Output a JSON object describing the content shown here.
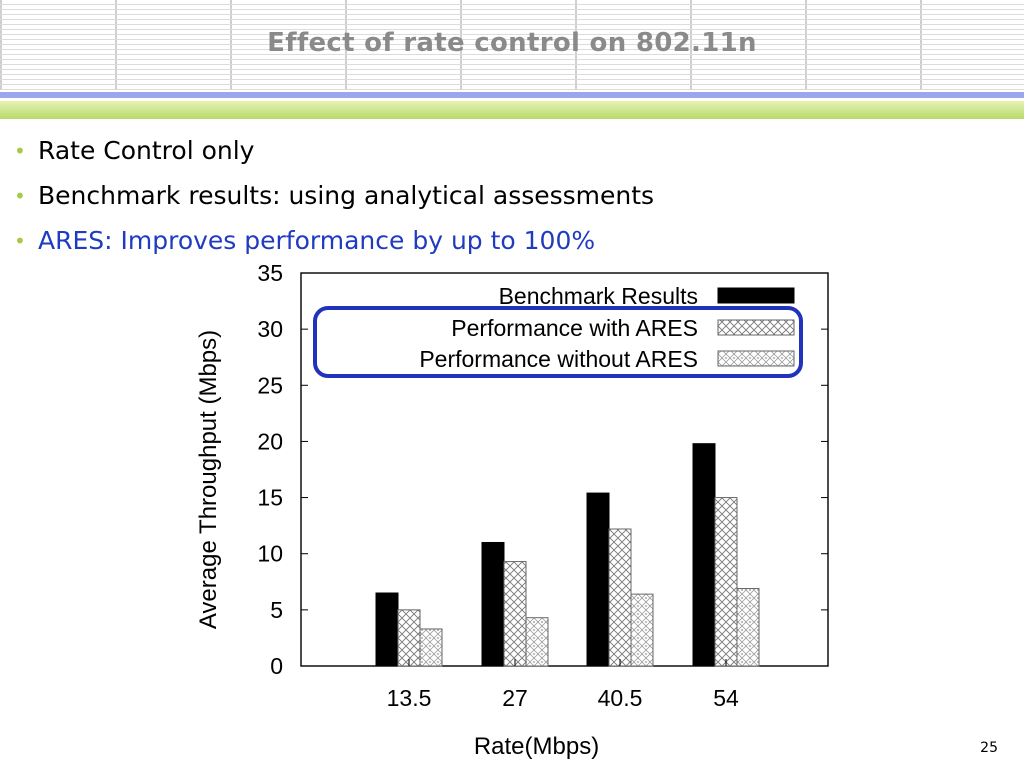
{
  "slide": {
    "title": "Effect of rate control on 802.11n",
    "page_number": "25"
  },
  "bullets": [
    {
      "text": "Rate Control only",
      "color": "#000000"
    },
    {
      "text": "Benchmark results: using analytical assessments",
      "color": "#000000"
    },
    {
      "text": "ARES: Improves performance by up to 100%",
      "color": "#1f3bbf"
    }
  ],
  "colors": {
    "accent_green": "#a8c84a",
    "accent_blue_rule": "#9aa7ee",
    "highlight_box": "#2233bb"
  },
  "chart_data": {
    "type": "bar",
    "xlabel": "Rate(Mbps)",
    "ylabel": "Average Throughput (Mbps)",
    "ylim": [
      0,
      35
    ],
    "yticks": [
      0,
      5,
      10,
      15,
      20,
      25,
      30,
      35
    ],
    "categories": [
      "13.5",
      "27",
      "40.5",
      "54"
    ],
    "grid": false,
    "legend_position": "top-right",
    "series": [
      {
        "name": "Benchmark Results",
        "values": [
          6.5,
          11.0,
          15.4,
          19.8
        ],
        "pattern": "solid-black"
      },
      {
        "name": "Performance with ARES",
        "values": [
          5.0,
          9.3,
          12.2,
          15.0
        ],
        "pattern": "crosshatch"
      },
      {
        "name": "Performance without ARES",
        "values": [
          3.3,
          4.3,
          6.4,
          6.9
        ],
        "pattern": "dotted-diamond"
      }
    ],
    "highlight": "legend entries for ARES circled in blue"
  }
}
